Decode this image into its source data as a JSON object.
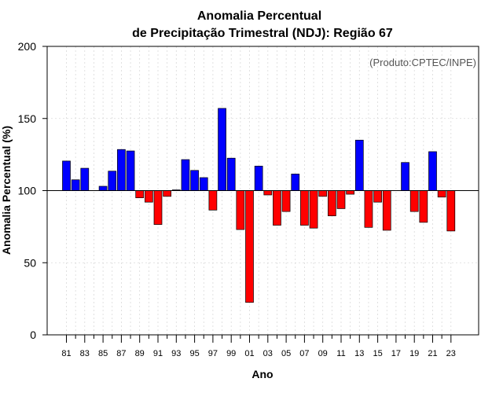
{
  "chart_data": {
    "type": "bar",
    "title_line1": "Anomalia Percentual",
    "title_line2": "de Precipitação Trimestral (NDJ): Região 67",
    "xlabel": "Ano",
    "ylabel": "Anomalia Percentual (%)",
    "credit": "(Produto:CPTEC/INPE)",
    "ylim": [
      0,
      200
    ],
    "yticks": [
      "0",
      "50",
      "100",
      "150",
      "200"
    ],
    "baseline": 100,
    "grid": true,
    "colors": {
      "above": "#0000ff",
      "below": "#ff0000",
      "edge": "#000000",
      "grid": "#d9d9d9"
    },
    "categories": [
      "81",
      "82",
      "83",
      "84",
      "85",
      "86",
      "87",
      "88",
      "89",
      "90",
      "91",
      "92",
      "93",
      "94",
      "95",
      "96",
      "97",
      "98",
      "99",
      "00",
      "01",
      "02",
      "03",
      "04",
      "05",
      "06",
      "07",
      "08",
      "09",
      "10",
      "11",
      "12",
      "13",
      "14",
      "15",
      "16",
      "17",
      "18",
      "19",
      "20",
      "21",
      "22",
      "23"
    ],
    "tick_labels": [
      "81",
      "83",
      "85",
      "87",
      "89",
      "91",
      "93",
      "95",
      "97",
      "99",
      "01",
      "03",
      "05",
      "07",
      "09",
      "11",
      "13",
      "15",
      "17",
      "19",
      "21",
      "23"
    ],
    "values": [
      120.5,
      107.5,
      115.5,
      100.0,
      103.0,
      113.5,
      128.5,
      127.5,
      95.0,
      92.0,
      76.5,
      96.0,
      100.5,
      121.5,
      114.0,
      109.0,
      86.5,
      157.0,
      122.5,
      73.0,
      22.5,
      117.0,
      97.0,
      76.0,
      85.5,
      111.5,
      76.0,
      74.0,
      96.0,
      82.5,
      87.5,
      97.5,
      135.0,
      74.5,
      92.0,
      72.5,
      100.0,
      119.5,
      85.5,
      78.0,
      127.0,
      95.5,
      72.0
    ]
  }
}
